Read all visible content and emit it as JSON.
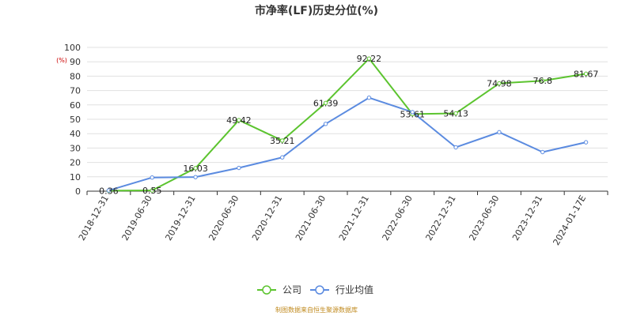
{
  "chart_data": {
    "type": "line",
    "title": "市净率(LF)历史分位(%)",
    "y_unit": "(%)",
    "ylim": [
      0,
      100
    ],
    "y_ticks": [
      0,
      10,
      20,
      30,
      40,
      50,
      60,
      70,
      80,
      90,
      100
    ],
    "categories": [
      "2018-12-31",
      "2019-06-30",
      "2019-12-31",
      "2020-06-30",
      "2020-12-31",
      "2021-06-30",
      "2021-12-31",
      "2022-06-30",
      "2022-12-31",
      "2023-06-30",
      "2023-12-31",
      "2024-01-17E"
    ],
    "series": [
      {
        "name": "公司",
        "color": "#5cc42f",
        "values": [
          0.36,
          0.55,
          16.03,
          49.42,
          35.21,
          61.39,
          92.22,
          53.61,
          54.13,
          74.98,
          76.8,
          81.67
        ],
        "labels": [
          "0.36",
          "0.55",
          "16.03",
          "49.42",
          "35.21",
          "61.39",
          "92.22",
          "53.61",
          "54.13",
          "74.98",
          "76.8",
          "81.67"
        ]
      },
      {
        "name": "行业均值",
        "color": "#5b8be0",
        "values": [
          0.5,
          9.5,
          9.8,
          16.2,
          23.5,
          46.8,
          65,
          55,
          30.5,
          41,
          27.2,
          34
        ]
      }
    ],
    "grid": true,
    "legend_position": "bottom"
  },
  "source": "制图数据来自恒生聚源数据库"
}
